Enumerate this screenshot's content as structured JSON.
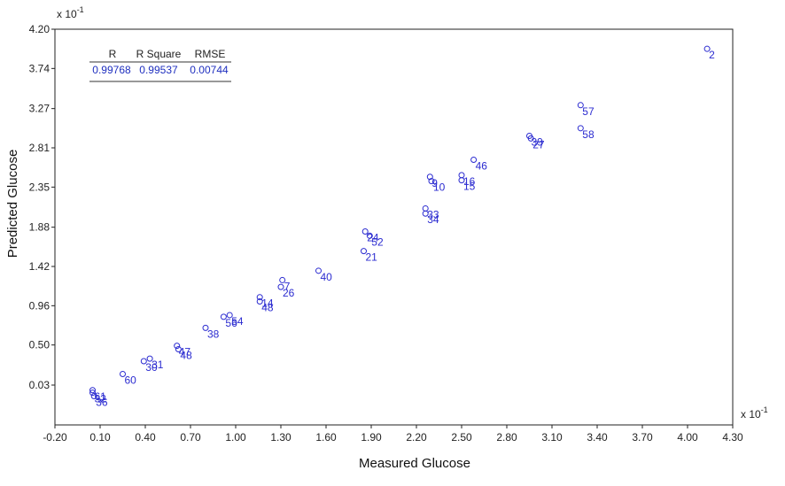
{
  "chart_data": {
    "type": "scatter",
    "xlabel": "Measured Glucose",
    "ylabel": "Predicted Glucose",
    "x_exponent": "x 10",
    "y_exponent": "x 10",
    "exponent_power": "-1",
    "xlim": [
      -0.2,
      4.3
    ],
    "ylim": [
      -0.2,
      4.2
    ],
    "x_ticks": [
      "-0.20",
      "0.10",
      "0.40",
      "0.70",
      "1.00",
      "1.30",
      "1.60",
      "1.90",
      "2.20",
      "2.50",
      "2.80",
      "3.10",
      "3.40",
      "3.70",
      "4.00",
      "4.30"
    ],
    "x_tick_values": [
      -0.2,
      0.1,
      0.4,
      0.7,
      1.0,
      1.3,
      1.6,
      1.9,
      2.2,
      2.5,
      2.8,
      3.1,
      3.4,
      3.7,
      4.0,
      4.3
    ],
    "y_ticks": [
      "0.03",
      "0.50",
      "0.96",
      "1.42",
      "1.88",
      "2.35",
      "2.81",
      "3.27",
      "3.74",
      "4.20"
    ],
    "y_tick_values": [
      0.03,
      0.5,
      0.96,
      1.42,
      1.88,
      2.35,
      2.81,
      3.27,
      3.74,
      4.2
    ],
    "grid": false,
    "stats_table": {
      "headers": [
        "R",
        "R Square",
        "RMSE"
      ],
      "values": [
        "0.99768",
        "0.99537",
        "0.00744"
      ]
    },
    "points": [
      {
        "label": "2",
        "x": 4.13,
        "y": 3.97
      },
      {
        "label": "57",
        "x": 3.29,
        "y": 3.31
      },
      {
        "label": "58",
        "x": 3.29,
        "y": 3.04
      },
      {
        "label": "39",
        "x": 2.95,
        "y": 2.95
      },
      {
        "label": "27",
        "x": 2.96,
        "y": 2.92
      },
      {
        "label": "46",
        "x": 2.58,
        "y": 2.67
      },
      {
        "label": "16",
        "x": 2.5,
        "y": 2.49
      },
      {
        "label": "15",
        "x": 2.5,
        "y": 2.43
      },
      {
        "label": "9",
        "x": 2.29,
        "y": 2.47
      },
      {
        "label": "10",
        "x": 2.3,
        "y": 2.42
      },
      {
        "label": "33",
        "x": 2.26,
        "y": 2.1
      },
      {
        "label": "34",
        "x": 2.26,
        "y": 2.04
      },
      {
        "label": "24",
        "x": 1.86,
        "y": 1.83
      },
      {
        "label": "52",
        "x": 1.89,
        "y": 1.78
      },
      {
        "label": "21",
        "x": 1.85,
        "y": 1.6
      },
      {
        "label": "40",
        "x": 1.55,
        "y": 1.37
      },
      {
        "label": "7",
        "x": 1.31,
        "y": 1.26
      },
      {
        "label": "26",
        "x": 1.3,
        "y": 1.18
      },
      {
        "label": "14",
        "x": 1.16,
        "y": 1.06
      },
      {
        "label": "48",
        "x": 1.16,
        "y": 1.01
      },
      {
        "label": "54",
        "x": 0.96,
        "y": 0.85
      },
      {
        "label": "56",
        "x": 0.92,
        "y": 0.83
      },
      {
        "label": "38",
        "x": 0.8,
        "y": 0.7
      },
      {
        "label": "47",
        "x": 0.61,
        "y": 0.49
      },
      {
        "label": "48",
        "x": 0.62,
        "y": 0.45
      },
      {
        "label": "31",
        "x": 0.43,
        "y": 0.34
      },
      {
        "label": "30",
        "x": 0.39,
        "y": 0.31
      },
      {
        "label": "60",
        "x": 0.25,
        "y": 0.16
      },
      {
        "label": "61",
        "x": 0.05,
        "y": -0.03
      },
      {
        "label": "32",
        "x": 0.05,
        "y": -0.06
      },
      {
        "label": "36",
        "x": 0.06,
        "y": -0.1
      }
    ]
  }
}
